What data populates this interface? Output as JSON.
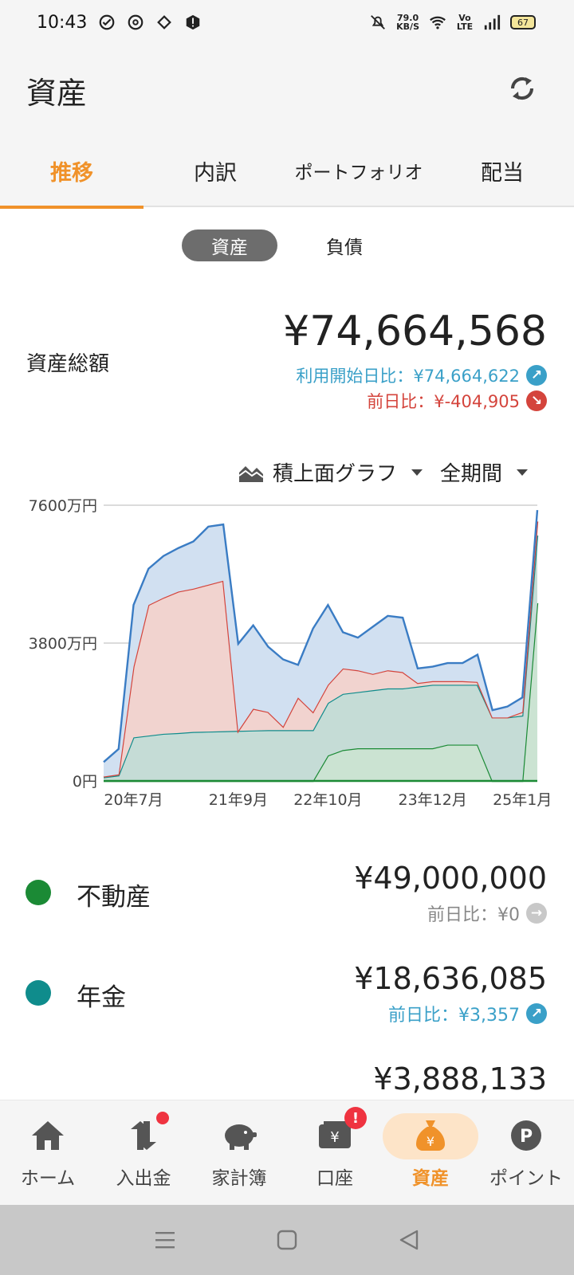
{
  "status": {
    "time": "10:43",
    "net_speed_value": "79.0",
    "net_speed_unit": "KB/S",
    "volte": "Vo LTE",
    "battery": "67"
  },
  "header": {
    "title": "資産"
  },
  "tabs": [
    {
      "label": "推移",
      "active": true
    },
    {
      "label": "内訳",
      "active": false
    },
    {
      "label": "ポートフォリオ",
      "active": false
    },
    {
      "label": "配当",
      "active": false
    }
  ],
  "segments": [
    {
      "label": "資産",
      "active": true
    },
    {
      "label": "負債",
      "active": false
    }
  ],
  "summary": {
    "label": "資産総額",
    "total": "¥74,664,568",
    "since_start": "利用開始日比：¥74,664,622",
    "vs_prev_day": "前日比：¥-404,905"
  },
  "chart_controls": {
    "graph_type": "積上面グラフ",
    "period": "全期間"
  },
  "chart_data": {
    "type": "area",
    "stacked": true,
    "y_ticks": [
      "7600万円",
      "3800万円",
      "0円"
    ],
    "x_ticks": [
      "20年7月",
      "21年9月",
      "22年10月",
      "23年12月",
      "25年1月"
    ],
    "ylim": [
      0,
      7600
    ],
    "x": [
      "20年3月",
      "20年5月",
      "20年7月",
      "20年9月",
      "20年11月",
      "21年1月",
      "21年3月",
      "21年5月",
      "21年7月",
      "21年9月",
      "21年11月",
      "22年1月",
      "22年3月",
      "22年5月",
      "22年7月",
      "22年10月",
      "22年12月",
      "23年2月",
      "23年4月",
      "23年6月",
      "23年8月",
      "23年10月",
      "23年12月",
      "24年2月",
      "24年4月",
      "24年6月",
      "24年8月",
      "24年10月",
      "24年12月",
      "25年1月"
    ],
    "series": [
      {
        "name": "不動産",
        "color": "#1b8a35",
        "values": [
          0,
          0,
          0,
          0,
          0,
          0,
          0,
          0,
          0,
          0,
          0,
          0,
          0,
          0,
          0,
          700,
          850,
          900,
          900,
          900,
          900,
          900,
          900,
          1000,
          1000,
          1000,
          0,
          0,
          0,
          4900
        ]
      },
      {
        "name": "年金",
        "color": "#0f8c8c",
        "values": [
          100,
          150,
          1200,
          1250,
          1300,
          1320,
          1350,
          1360,
          1370,
          1380,
          1390,
          1400,
          1400,
          1400,
          1400,
          1450,
          1550,
          1550,
          1600,
          1650,
          1650,
          1700,
          1750,
          1650,
          1650,
          1650,
          1750,
          1750,
          1800,
          1864
        ]
      },
      {
        "name": "",
        "color": "#d4443c",
        "values": [
          20,
          30,
          1950,
          3600,
          3750,
          3900,
          3950,
          4050,
          4150,
          0,
          600,
          500,
          100,
          900,
          500,
          500,
          700,
          600,
          450,
          500,
          450,
          100,
          100,
          100,
          100,
          80,
          0,
          0,
          100,
          389
        ]
      },
      {
        "name": "",
        "color": "#3a7cc4",
        "values": [
          400,
          700,
          1700,
          1000,
          1150,
          1200,
          1300,
          1600,
          1550,
          2400,
          2300,
          1800,
          1850,
          900,
          2300,
          2200,
          1000,
          900,
          1300,
          1500,
          1500,
          400,
          400,
          500,
          500,
          750,
          200,
          300,
          400,
          313
        ]
      }
    ]
  },
  "assets": [
    {
      "name": "不動産",
      "color": "#1b8a35",
      "value": "¥49,000,000",
      "cmp": "前日比：¥0",
      "trend": "flat"
    },
    {
      "name": "年金",
      "color": "#0f8c8c",
      "value": "¥18,636,085",
      "cmp": "前日比：¥3,357",
      "trend": "up"
    },
    {
      "name": "",
      "color": "",
      "value": "¥3,888,133",
      "cmp": "",
      "trend": ""
    }
  ],
  "bottom_nav": [
    {
      "label": "ホーム",
      "icon": "home-icon",
      "active": false
    },
    {
      "label": "入出金",
      "icon": "transfer-icon",
      "active": false,
      "badge": "dot"
    },
    {
      "label": "家計簿",
      "icon": "piggy-bank-icon",
      "active": false
    },
    {
      "label": "口座",
      "icon": "wallet-icon",
      "active": false,
      "badge": "!"
    },
    {
      "label": "資産",
      "icon": "money-bag-icon",
      "active": true
    },
    {
      "label": "ポイント",
      "icon": "point-icon",
      "active": false
    }
  ],
  "colors": {
    "accent": "#f0922a",
    "up": "#3aa0c8",
    "down": "#d4443c"
  }
}
